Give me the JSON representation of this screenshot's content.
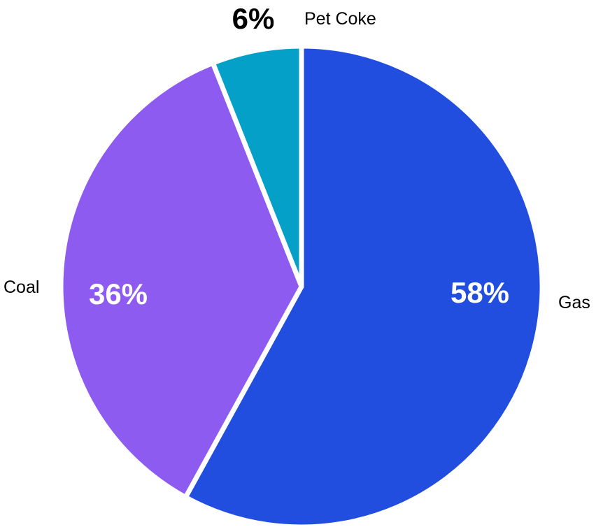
{
  "chart_data": {
    "type": "pie",
    "categories": [
      "Gas",
      "Coal",
      "Pet Coke"
    ],
    "values": [
      58,
      36,
      6
    ],
    "value_labels": [
      "58%",
      "36%",
      "6%"
    ],
    "colors": [
      "#214edf",
      "#8d5bef",
      "#04a0c8"
    ],
    "value_label_colors": [
      "#ffffff",
      "#ffffff",
      "#000000"
    ],
    "start": "12 o'clock",
    "direction": "clockwise",
    "legend": "none"
  }
}
